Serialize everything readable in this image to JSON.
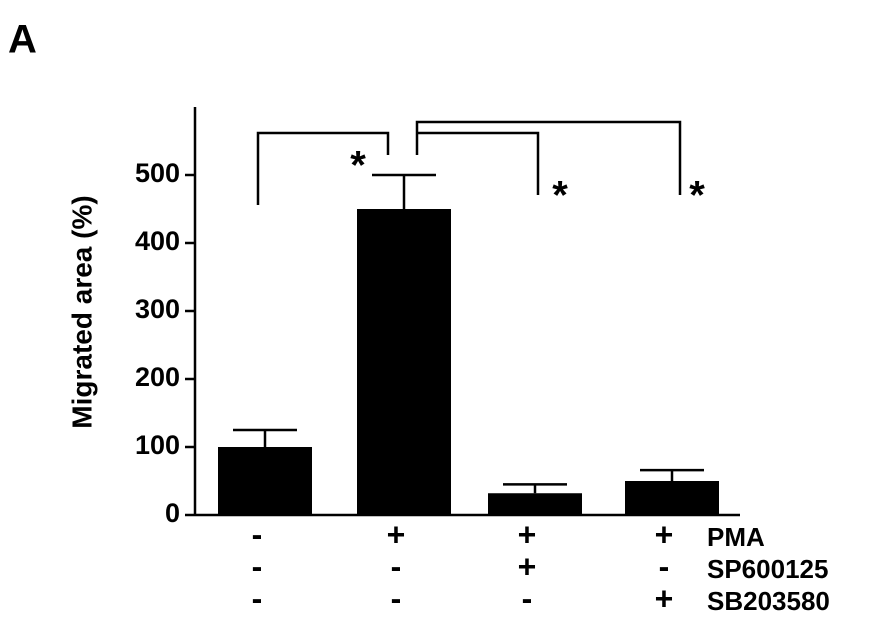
{
  "panel_label": "A",
  "chart_data": {
    "type": "bar",
    "y_label": "Migrated area (%)",
    "categories": [
      null,
      null,
      null,
      null
    ],
    "values": [
      100,
      450,
      32,
      50
    ],
    "errors": [
      25,
      50,
      13,
      16
    ],
    "color": "#000000",
    "ylim": [
      0,
      600
    ],
    "yticks": [
      0,
      100,
      200,
      300,
      400,
      500
    ],
    "grid": false,
    "annotations": [
      "*",
      "*",
      "*"
    ],
    "conditions": [
      {
        "name": "PMA",
        "values": [
          "-",
          "+",
          "+",
          "+"
        ]
      },
      {
        "name": "SP600125",
        "values": [
          "-",
          "-",
          "+",
          "-"
        ]
      },
      {
        "name": "SB203580",
        "values": [
          "-",
          "-",
          "-",
          "+"
        ]
      }
    ]
  }
}
